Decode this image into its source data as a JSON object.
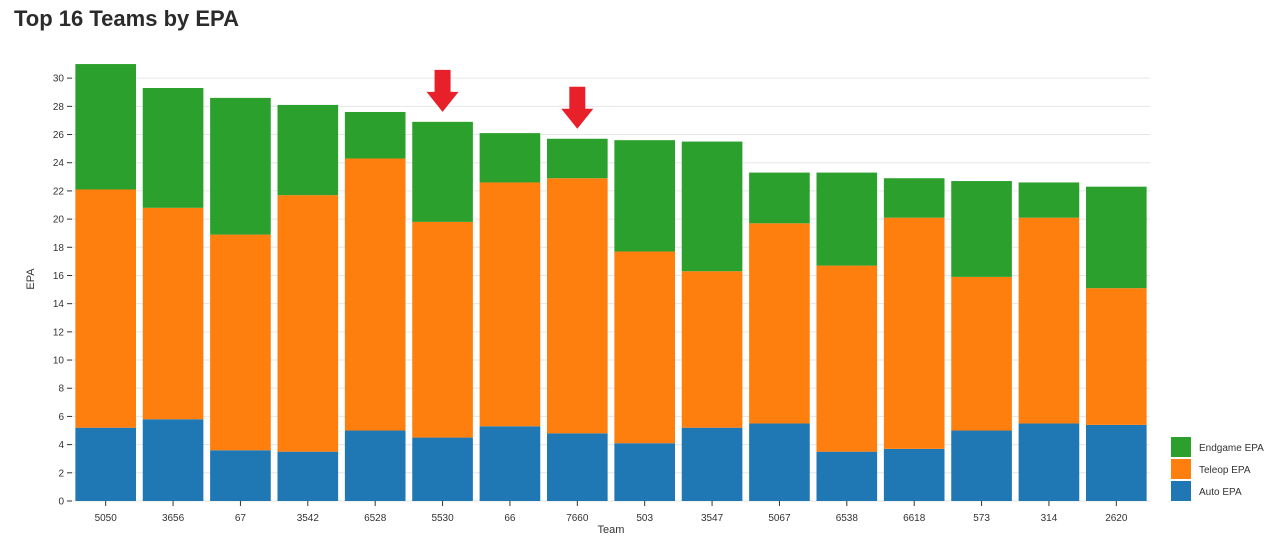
{
  "page": {
    "title": "Top 16 Teams by EPA"
  },
  "chart_data": {
    "type": "bar",
    "stacked": true,
    "title": "Top 16 Teams by EPA",
    "xlabel": "Team",
    "ylabel": "EPA",
    "ylim": [
      0,
      31.5
    ],
    "yticks": [
      0,
      2,
      4,
      6,
      8,
      10,
      12,
      14,
      16,
      18,
      20,
      22,
      24,
      26,
      28,
      30
    ],
    "grid": true,
    "legend_position": "bottom-right",
    "categories": [
      "5050",
      "3656",
      "67",
      "3542",
      "6528",
      "5530",
      "66",
      "7660",
      "503",
      "3547",
      "5067",
      "6538",
      "6618",
      "573",
      "314",
      "2620"
    ],
    "series": [
      {
        "name": "Auto EPA",
        "color": "#1f77b4",
        "values": [
          5.2,
          5.8,
          3.6,
          3.5,
          5.0,
          4.5,
          5.3,
          4.8,
          4.1,
          5.2,
          5.5,
          3.5,
          3.7,
          5.0,
          5.5,
          5.4
        ]
      },
      {
        "name": "Teleop EPA",
        "color": "#ff7f0e",
        "values": [
          16.9,
          15.0,
          15.3,
          18.2,
          19.3,
          15.3,
          17.3,
          18.1,
          13.6,
          11.1,
          14.2,
          13.2,
          16.4,
          10.9,
          14.6,
          9.7
        ]
      },
      {
        "name": "Endgame EPA",
        "color": "#2ca02c",
        "values": [
          8.9,
          8.5,
          9.7,
          6.4,
          3.3,
          7.1,
          3.5,
          2.8,
          7.9,
          9.2,
          3.6,
          6.6,
          2.8,
          6.8,
          2.5,
          7.2
        ]
      }
    ],
    "annotations": [
      {
        "type": "arrow-down",
        "category": "5530",
        "color": "#e8202a"
      },
      {
        "type": "arrow-down",
        "category": "7660",
        "color": "#e8202a"
      }
    ],
    "legend": [
      {
        "label": "Endgame EPA",
        "color": "#2ca02c"
      },
      {
        "label": "Teleop EPA",
        "color": "#ff7f0e"
      },
      {
        "label": "Auto EPA",
        "color": "#1f77b4"
      }
    ]
  }
}
